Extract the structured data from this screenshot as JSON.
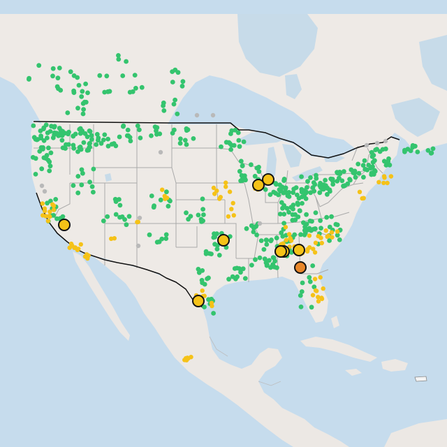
{
  "map": {
    "region": "contiguous-united-states",
    "colors": {
      "ocean": "#c6dced",
      "land": "#eeeae6",
      "us_border": "#111111",
      "state_border": "#a9a9a9",
      "gauge_normal": "#34c46e",
      "gauge_action": "#f5c218",
      "gauge_minor": "#e8862a",
      "gauge_offline": "#b9b9b9",
      "marker_outline": "#111111"
    },
    "legend": "none",
    "marker_types": [
      "normal",
      "action",
      "minor",
      "offline"
    ]
  }
}
